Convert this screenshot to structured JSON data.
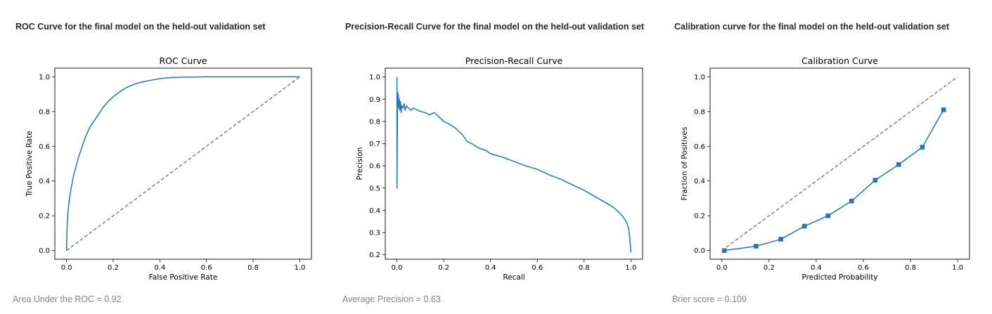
{
  "panels": [
    {
      "heading": "ROC Curve for the final model on the held-out validation set",
      "caption": "Area Under the ROC = 0.92"
    },
    {
      "heading": "Precision-Recall Curve for the final model on the held-out validation set",
      "caption": "Average Precision = 0.63"
    },
    {
      "heading": "Calibration curve for the final model on the held-out validation set",
      "caption": "Brier score = 0.109"
    }
  ],
  "chart_data": [
    {
      "type": "line",
      "title": "ROC Curve",
      "xlabel": "False Positive Rate",
      "ylabel": "True Positive Rate",
      "xlim": [
        -0.05,
        1.05
      ],
      "ylim": [
        -0.05,
        1.05
      ],
      "xticks": [
        0.0,
        0.2,
        0.4,
        0.6,
        0.8,
        1.0
      ],
      "yticks": [
        0.0,
        0.2,
        0.4,
        0.6,
        0.8,
        1.0
      ],
      "xtick_labels": [
        "0.0",
        "0.2",
        "0.4",
        "0.6",
        "0.8",
        "1.0"
      ],
      "ytick_labels": [
        "0.0",
        "0.2",
        "0.4",
        "0.6",
        "0.8",
        "1.0"
      ],
      "grid": false,
      "series": [
        {
          "color": "#1f77b4",
          "style": "solid",
          "x": [
            0.0,
            0.003,
            0.006,
            0.01,
            0.015,
            0.02,
            0.03,
            0.04,
            0.05,
            0.06,
            0.07,
            0.08,
            0.09,
            0.1,
            0.12,
            0.14,
            0.16,
            0.18,
            0.2,
            0.22,
            0.24,
            0.26,
            0.28,
            0.3,
            0.33,
            0.36,
            0.4,
            0.45,
            0.5,
            0.6,
            0.7,
            0.8,
            0.9,
            1.0
          ],
          "y": [
            0.0,
            0.15,
            0.22,
            0.27,
            0.32,
            0.36,
            0.43,
            0.48,
            0.53,
            0.57,
            0.61,
            0.65,
            0.68,
            0.71,
            0.75,
            0.79,
            0.83,
            0.86,
            0.885,
            0.905,
            0.925,
            0.94,
            0.952,
            0.962,
            0.972,
            0.98,
            0.99,
            0.996,
            0.998,
            1.0,
            1.0,
            1.0,
            1.0,
            1.0
          ]
        },
        {
          "color": "#808080",
          "style": "dashed",
          "x": [
            0.0,
            1.0
          ],
          "y": [
            0.0,
            1.0
          ]
        }
      ]
    },
    {
      "type": "line",
      "title": "Precision-Recall Curve",
      "xlabel": "Recall",
      "ylabel": "Precision",
      "xlim": [
        -0.05,
        1.05
      ],
      "ylim": [
        0.18,
        1.04
      ],
      "xticks": [
        0.0,
        0.2,
        0.4,
        0.6,
        0.8,
        1.0
      ],
      "yticks": [
        0.2,
        0.3,
        0.4,
        0.5,
        0.6,
        0.7,
        0.8,
        0.9,
        1.0
      ],
      "xtick_labels": [
        "0.0",
        "0.2",
        "0.4",
        "0.6",
        "0.8",
        "1.0"
      ],
      "ytick_labels": [
        "0.2",
        "0.3",
        "0.4",
        "0.5",
        "0.6",
        "0.7",
        "0.8",
        "0.9",
        "1.0"
      ],
      "grid": false,
      "series": [
        {
          "color": "#1f77b4",
          "style": "solid",
          "x": [
            0.0,
            0.0,
            0.003,
            0.004,
            0.006,
            0.008,
            0.01,
            0.012,
            0.015,
            0.018,
            0.02,
            0.025,
            0.03,
            0.035,
            0.04,
            0.05,
            0.06,
            0.07,
            0.08,
            0.1,
            0.12,
            0.14,
            0.16,
            0.18,
            0.2,
            0.22,
            0.25,
            0.28,
            0.3,
            0.32,
            0.35,
            0.38,
            0.4,
            0.45,
            0.5,
            0.55,
            0.6,
            0.65,
            0.7,
            0.75,
            0.8,
            0.85,
            0.9,
            0.93,
            0.96,
            0.98,
            0.99,
            0.995,
            1.0
          ],
          "y": [
            1.0,
            0.5,
            0.93,
            0.88,
            0.92,
            0.86,
            0.9,
            0.85,
            0.89,
            0.84,
            0.87,
            0.86,
            0.88,
            0.85,
            0.87,
            0.86,
            0.85,
            0.86,
            0.855,
            0.845,
            0.84,
            0.83,
            0.84,
            0.82,
            0.8,
            0.79,
            0.77,
            0.74,
            0.71,
            0.7,
            0.68,
            0.67,
            0.655,
            0.64,
            0.62,
            0.6,
            0.585,
            0.56,
            0.54,
            0.515,
            0.49,
            0.46,
            0.43,
            0.41,
            0.38,
            0.35,
            0.32,
            0.28,
            0.21
          ]
        }
      ]
    },
    {
      "type": "line",
      "title": "Calibration Curve",
      "xlabel": "Predicted Probability",
      "ylabel": "Fraction of Positives",
      "xlim": [
        -0.05,
        1.05
      ],
      "ylim": [
        -0.05,
        1.05
      ],
      "xticks": [
        0.0,
        0.2,
        0.4,
        0.6,
        0.8,
        1.0
      ],
      "yticks": [
        0.0,
        0.2,
        0.4,
        0.6,
        0.8,
        1.0
      ],
      "xtick_labels": [
        "0.0",
        "0.2",
        "0.4",
        "0.6",
        "0.8",
        "1.0"
      ],
      "ytick_labels": [
        "0.0",
        "0.2",
        "0.4",
        "0.6",
        "0.8",
        "1.0"
      ],
      "grid": false,
      "series": [
        {
          "color": "#1f77b4",
          "style": "solid",
          "marker": "square",
          "x": [
            0.01,
            0.145,
            0.25,
            0.35,
            0.45,
            0.55,
            0.65,
            0.75,
            0.85,
            0.94
          ],
          "y": [
            0.0,
            0.025,
            0.065,
            0.14,
            0.2,
            0.285,
            0.405,
            0.495,
            0.595,
            0.81
          ]
        },
        {
          "color": "#808080",
          "style": "dashed",
          "x": [
            0.0,
            1.0
          ],
          "y": [
            0.0,
            1.0
          ]
        }
      ]
    }
  ]
}
